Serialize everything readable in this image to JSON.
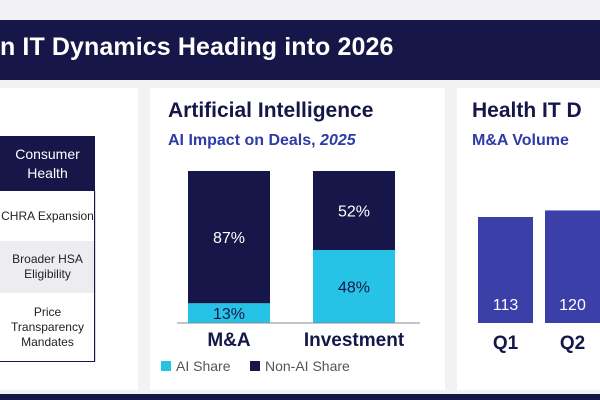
{
  "banner": {
    "title": "n IT Dynamics Heading into 2026"
  },
  "left_panel": {
    "table": {
      "header": [
        "Consumer",
        "Health"
      ],
      "rows": [
        [
          "CHRA Expansion"
        ],
        [
          "Broader HSA",
          "Eligibility"
        ],
        [
          "Price",
          "Transparency",
          "Mandates"
        ]
      ]
    }
  },
  "middle_panel": {
    "title": "Artificial Intelligence",
    "subtitle_prefix": "AI Impact on Deals, ",
    "subtitle_year": "2025"
  },
  "right_panel": {
    "title": "Health IT D",
    "subtitle": "M&A Volume"
  },
  "chart_data": [
    {
      "type": "bar",
      "stacked": true,
      "percent": true,
      "categories": [
        "M&A",
        "Investment"
      ],
      "series": [
        {
          "name": "AI Share",
          "values": [
            13,
            48
          ],
          "labels": [
            "13%",
            "48%"
          ],
          "color": "#27c3e6"
        },
        {
          "name": "Non-AI Share",
          "values": [
            87,
            52
          ],
          "labels": [
            "87%",
            "52%"
          ],
          "color": "#161748"
        }
      ],
      "ylim": [
        0,
        100
      ],
      "legend": "bottom"
    },
    {
      "type": "bar",
      "categories": [
        "Q1",
        "Q2"
      ],
      "values": [
        113,
        120
      ],
      "labels": [
        "113",
        "120"
      ],
      "color": "#3b3fa8"
    }
  ]
}
